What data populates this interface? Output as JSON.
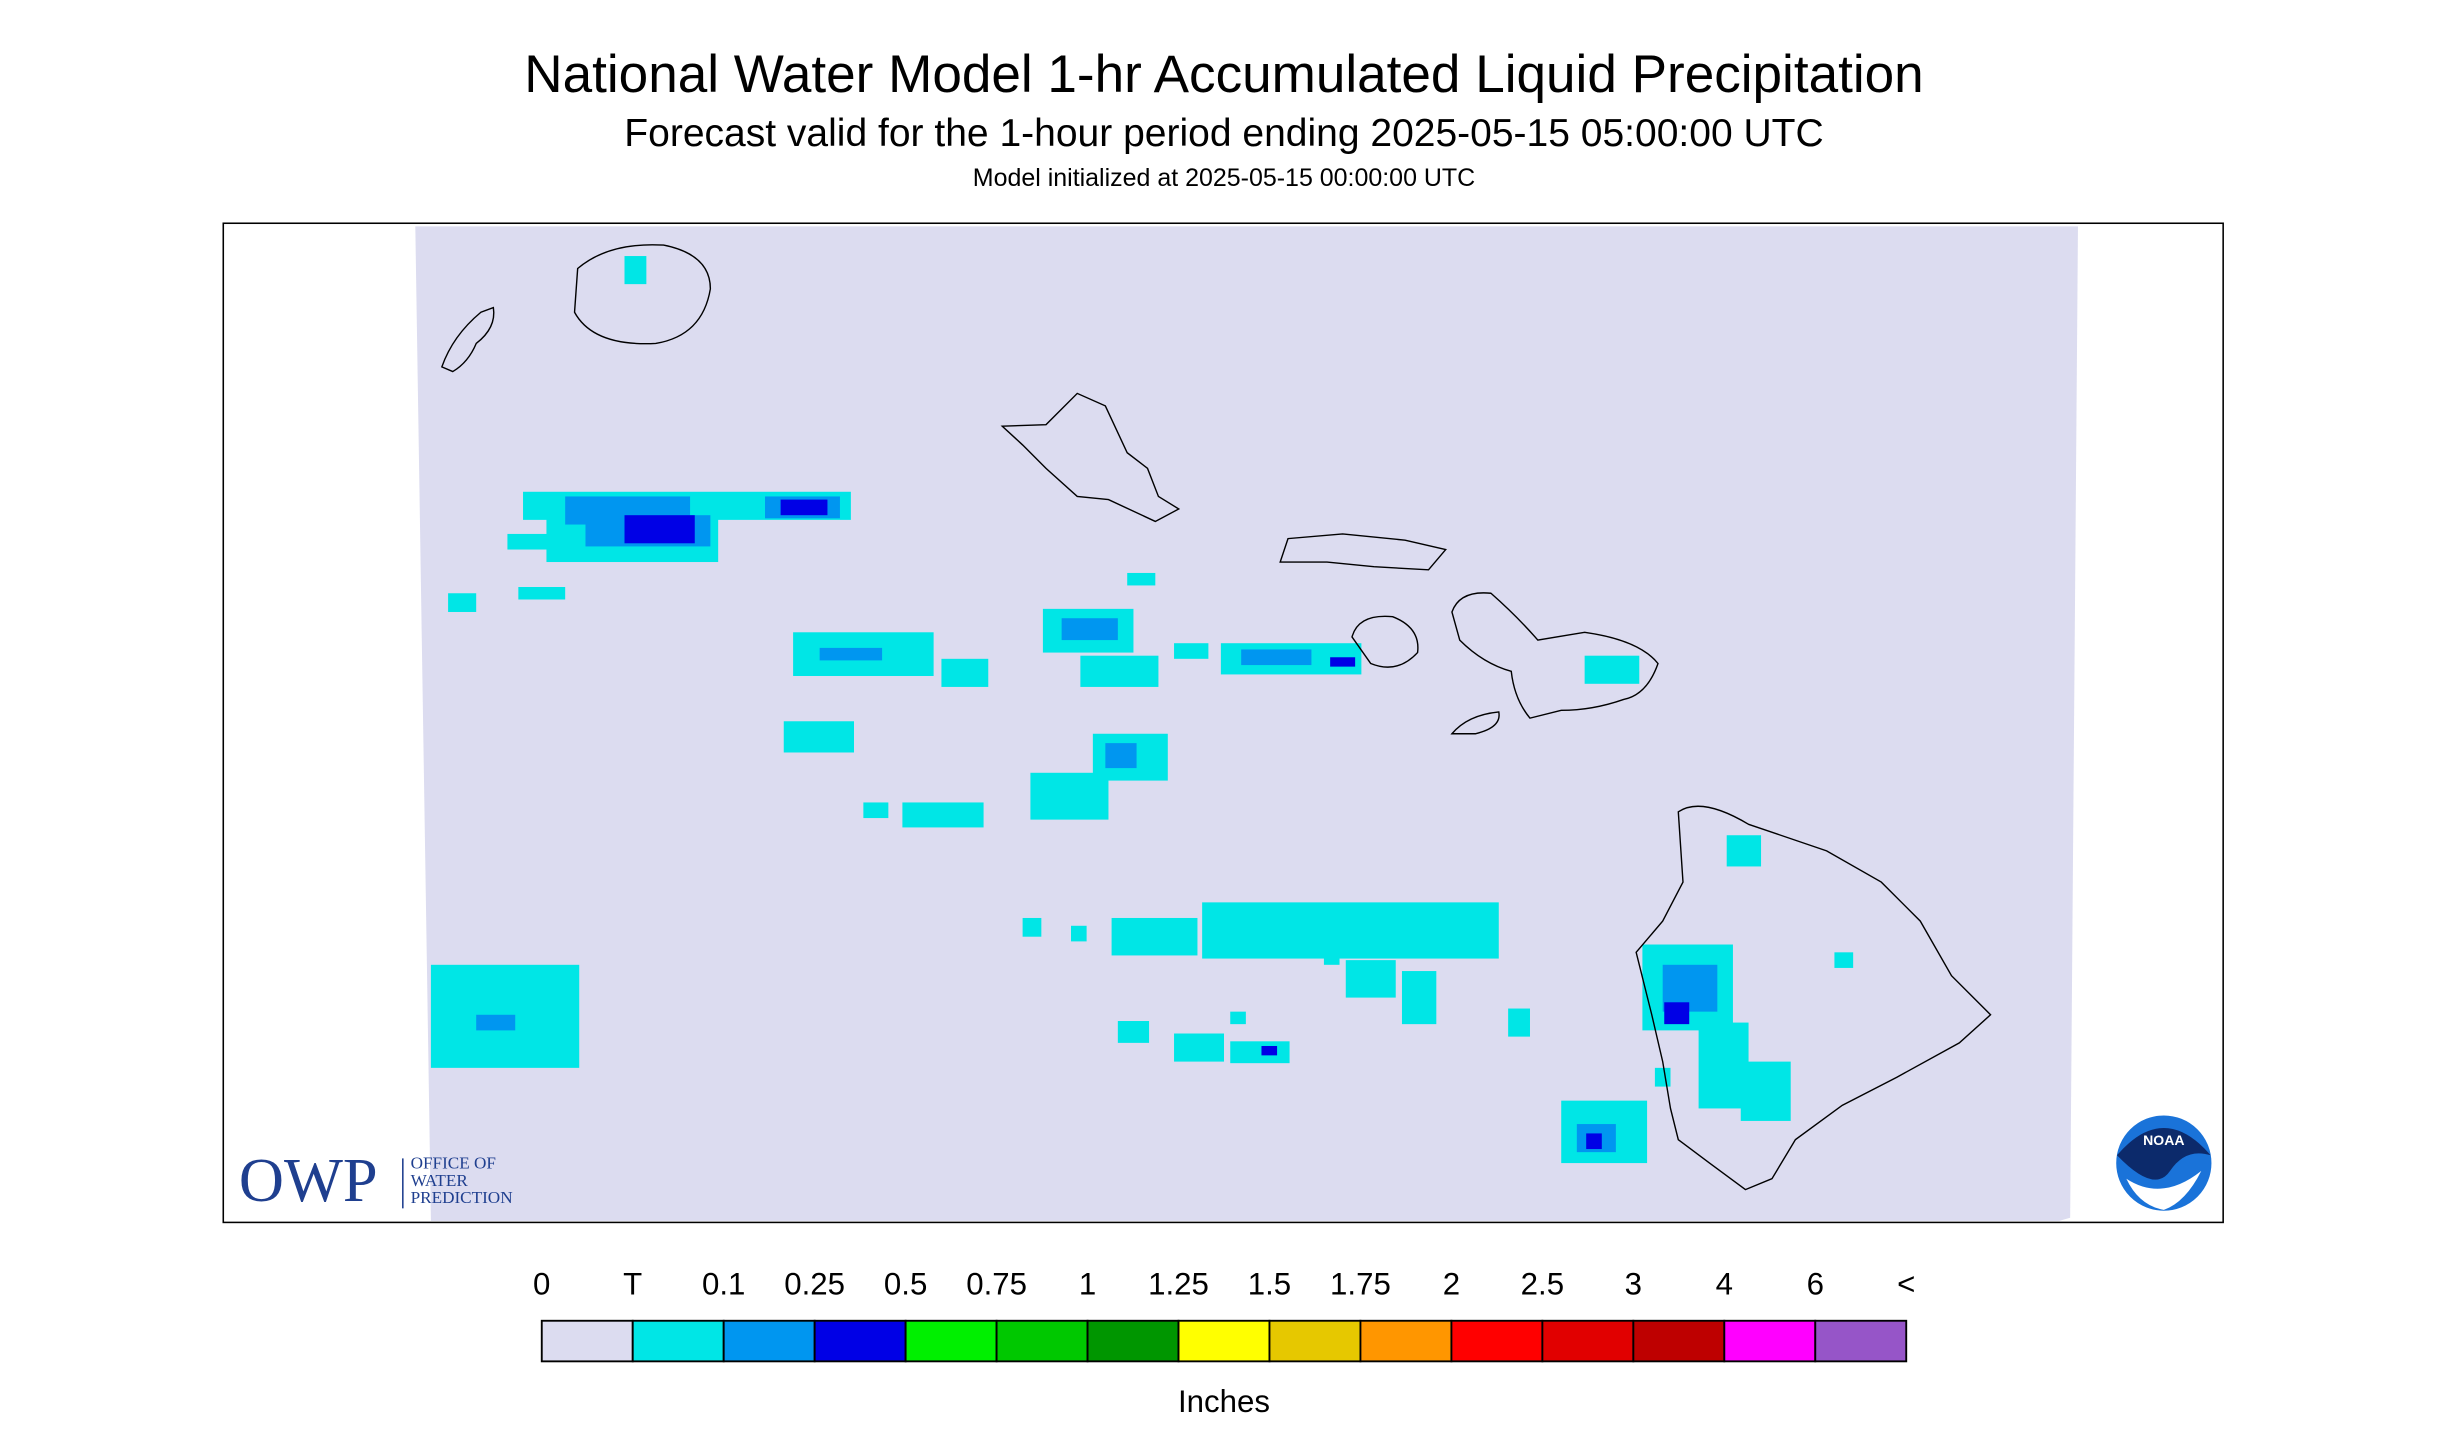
{
  "header": {
    "title": "National Water Model 1-hr Accumulated Liquid Precipitation",
    "subtitle": "Forecast valid for the 1-hour period ending 2025-05-15 05:00:00 UTC",
    "init": "Model initialized at 2025-05-15 00:00:00 UTC"
  },
  "logos": {
    "owp": "OWP",
    "owp_lines": [
      "OFFICE OF",
      "WATER",
      "PREDICTION"
    ],
    "noaa": "NOAA"
  },
  "legend": {
    "labels": [
      "0",
      "T",
      "0.1",
      "0.25",
      "0.5",
      "0.75",
      "1",
      "1.25",
      "1.5",
      "1.75",
      "2",
      "2.5",
      "3",
      "4",
      "6",
      "<"
    ],
    "colors": [
      "#dcdcf0",
      "#00e6e6",
      "#0096f0",
      "#0000e6",
      "#00f000",
      "#00c800",
      "#009600",
      "#ffff00",
      "#e6c800",
      "#ff9600",
      "#ff0000",
      "#e10000",
      "#be0000",
      "#ff00ff",
      "#9655c8"
    ],
    "unit": "Inches"
  }
}
